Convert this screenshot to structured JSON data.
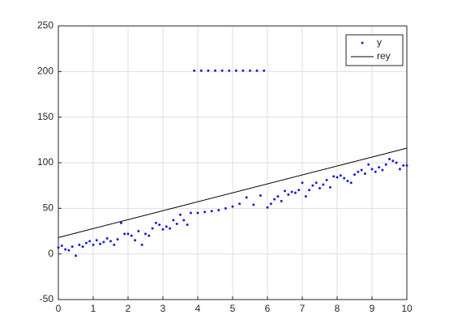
{
  "chart_data": {
    "type": "scatter",
    "series": [
      {
        "name": "y",
        "mode": "markers",
        "color": "#1f1fd0",
        "x": [
          0,
          0.1,
          0.2,
          0.3,
          0.4,
          0.5,
          0.6,
          0.7,
          0.8,
          0.9,
          1,
          1.1,
          1.2,
          1.3,
          1.4,
          1.5,
          1.6,
          1.7,
          1.8,
          1.9,
          2,
          2.1,
          2.2,
          2.3,
          2.4,
          2.5,
          2.6,
          2.7,
          2.8,
          2.9,
          3,
          3.1,
          3.2,
          3.3,
          3.4,
          3.5,
          3.6,
          3.7,
          3.8,
          3.9,
          4,
          4.1,
          4.2,
          4.3,
          4.4,
          4.5,
          4.6,
          4.7,
          4.8,
          4.9,
          5,
          5.1,
          5.2,
          5.3,
          5.4,
          5.5,
          5.6,
          5.7,
          5.8,
          5.9,
          6,
          6.1,
          6.2,
          6.3,
          6.4,
          6.5,
          6.6,
          6.7,
          6.8,
          6.9,
          7,
          7.1,
          7.2,
          7.3,
          7.4,
          7.5,
          7.6,
          7.7,
          7.8,
          7.9,
          8,
          8.1,
          8.2,
          8.3,
          8.4,
          8.5,
          8.6,
          8.7,
          8.8,
          8.9,
          9,
          9.1,
          9.2,
          9.3,
          9.4,
          9.5,
          9.6,
          9.7,
          9.8,
          9.9,
          10
        ],
        "values": [
          7,
          9,
          5,
          4,
          8,
          -2,
          10,
          8,
          12,
          14,
          10,
          15,
          11,
          13,
          17,
          14,
          10,
          16,
          34,
          22,
          22,
          20,
          15,
          25,
          10,
          22,
          20,
          28,
          34,
          32,
          27,
          30,
          28,
          37,
          33,
          43,
          37,
          32,
          45,
          201,
          45,
          201,
          46,
          201,
          47,
          201,
          48,
          201,
          50,
          201,
          52,
          201,
          55,
          201,
          62,
          201,
          54,
          201,
          64,
          201,
          51,
          55,
          60,
          63,
          58,
          69,
          65,
          68,
          67,
          70,
          78,
          63,
          70,
          75,
          78,
          72,
          76,
          81,
          73,
          85,
          84,
          86,
          83,
          80,
          78,
          87,
          90,
          92,
          88,
          98,
          93,
          90,
          95,
          92,
          98,
          104,
          102,
          100,
          93,
          97,
          97
        ]
      },
      {
        "name": "rey",
        "mode": "line",
        "color": "#000000",
        "x": [
          0,
          10
        ],
        "values": [
          18,
          116
        ]
      }
    ],
    "xlim": [
      0,
      10
    ],
    "xticks": [
      0,
      1,
      2,
      3,
      4,
      5,
      6,
      7,
      8,
      9,
      10
    ],
    "ylim": [
      -50,
      250
    ],
    "yticks": [
      -50,
      0,
      50,
      100,
      150,
      200,
      250
    ],
    "grid": true,
    "legend": "northeast"
  }
}
